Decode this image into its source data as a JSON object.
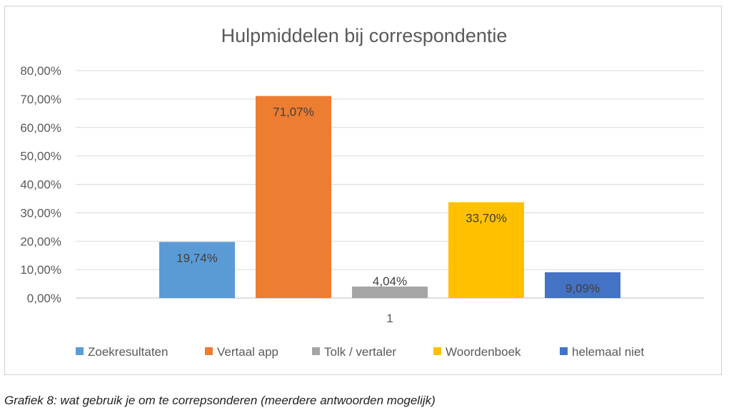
{
  "chart_data": {
    "type": "bar",
    "title": "Hulpmiddelen bij correspondentie",
    "categories": [
      "1"
    ],
    "series": [
      {
        "name": "Zoekresultaten",
        "values": [
          19.74
        ],
        "label": "19,74%",
        "color": "#5b9bd5"
      },
      {
        "name": "Vertaal app",
        "values": [
          71.07
        ],
        "label": "71,07%",
        "color": "#ed7d31"
      },
      {
        "name": "Tolk / vertaler",
        "values": [
          4.04
        ],
        "label": "4,04%",
        "color": "#a5a5a5"
      },
      {
        "name": "Woordenboek",
        "values": [
          33.7
        ],
        "label": "33,70%",
        "color": "#ffc000"
      },
      {
        "name": "helemaal niet",
        "values": [
          9.09
        ],
        "label": "9,09%",
        "color": "#4472c4"
      }
    ],
    "ylim": [
      0,
      80
    ],
    "yticks": [
      0,
      10,
      20,
      30,
      40,
      50,
      60,
      70,
      80
    ],
    "yticklabels": [
      "0,00%",
      "10,00%",
      "20,00%",
      "30,00%",
      "40,00%",
      "50,00%",
      "60,00%",
      "70,00%",
      "80,00%"
    ],
    "xlabel": "",
    "ylabel": "",
    "legend_position": "bottom",
    "grid": true
  },
  "caption": "Grafiek 8: wat gebruik je om te correpsonderen (meerdere antwoorden mogelijk)"
}
